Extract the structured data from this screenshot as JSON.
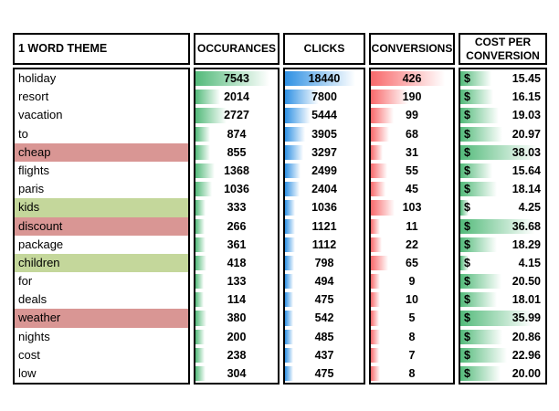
{
  "table": {
    "columns": [
      {
        "key": "theme",
        "label": "1 WORD THEME"
      },
      {
        "key": "occurances",
        "label": "OCCURANCES"
      },
      {
        "key": "clicks",
        "label": "CLICKS"
      },
      {
        "key": "conversions",
        "label": "CONVERSIONS"
      },
      {
        "key": "cost_per_conversion",
        "label": "COST PER CONVERSION"
      }
    ],
    "currency_symbol": "$",
    "rows": [
      {
        "theme": "holiday",
        "occurances": 7543,
        "clicks": 18440,
        "conversions": 426,
        "cost_per_conversion": "15.45",
        "highlight": "none"
      },
      {
        "theme": "resort",
        "occurances": 2014,
        "clicks": 7800,
        "conversions": 190,
        "cost_per_conversion": "16.15",
        "highlight": "none"
      },
      {
        "theme": "vacation",
        "occurances": 2727,
        "clicks": 5444,
        "conversions": 99,
        "cost_per_conversion": "19.03",
        "highlight": "none"
      },
      {
        "theme": "to",
        "occurances": 874,
        "clicks": 3905,
        "conversions": 68,
        "cost_per_conversion": "20.97",
        "highlight": "none"
      },
      {
        "theme": "cheap",
        "occurances": 855,
        "clicks": 3297,
        "conversions": 31,
        "cost_per_conversion": "38.03",
        "highlight": "red"
      },
      {
        "theme": "flights",
        "occurances": 1368,
        "clicks": 2499,
        "conversions": 55,
        "cost_per_conversion": "15.64",
        "highlight": "none"
      },
      {
        "theme": "paris",
        "occurances": 1036,
        "clicks": 2404,
        "conversions": 45,
        "cost_per_conversion": "18.14",
        "highlight": "none"
      },
      {
        "theme": "kids",
        "occurances": 333,
        "clicks": 1036,
        "conversions": 103,
        "cost_per_conversion": "4.25",
        "highlight": "green"
      },
      {
        "theme": "discount",
        "occurances": 266,
        "clicks": 1121,
        "conversions": 11,
        "cost_per_conversion": "36.68",
        "highlight": "red"
      },
      {
        "theme": "package",
        "occurances": 361,
        "clicks": 1112,
        "conversions": 22,
        "cost_per_conversion": "18.29",
        "highlight": "none"
      },
      {
        "theme": "children",
        "occurances": 418,
        "clicks": 798,
        "conversions": 65,
        "cost_per_conversion": "4.15",
        "highlight": "green"
      },
      {
        "theme": "for",
        "occurances": 133,
        "clicks": 494,
        "conversions": 9,
        "cost_per_conversion": "20.50",
        "highlight": "none"
      },
      {
        "theme": "deals",
        "occurances": 114,
        "clicks": 475,
        "conversions": 10,
        "cost_per_conversion": "18.01",
        "highlight": "none"
      },
      {
        "theme": "weather",
        "occurances": 380,
        "clicks": 542,
        "conversions": 5,
        "cost_per_conversion": "35.99",
        "highlight": "red"
      },
      {
        "theme": "nights",
        "occurances": 200,
        "clicks": 485,
        "conversions": 8,
        "cost_per_conversion": "20.86",
        "highlight": "none"
      },
      {
        "theme": "cost",
        "occurances": 238,
        "clicks": 437,
        "conversions": 7,
        "cost_per_conversion": "22.96",
        "highlight": "none"
      },
      {
        "theme": "low",
        "occurances": 304,
        "clicks": 475,
        "conversions": 8,
        "cost_per_conversion": "20.00",
        "highlight": "none"
      }
    ]
  },
  "colors": {
    "border": "#000000",
    "bar_occurances": "#53BA7A",
    "bar_clicks": "#2E90E3",
    "bar_conversions": "#F8696B",
    "bar_cost": "#53BA7A",
    "highlight_red": "#D99694",
    "highlight_green": "#C4D79B"
  },
  "bar_scale": {
    "min_pct": 10,
    "max_pct": 90
  }
}
